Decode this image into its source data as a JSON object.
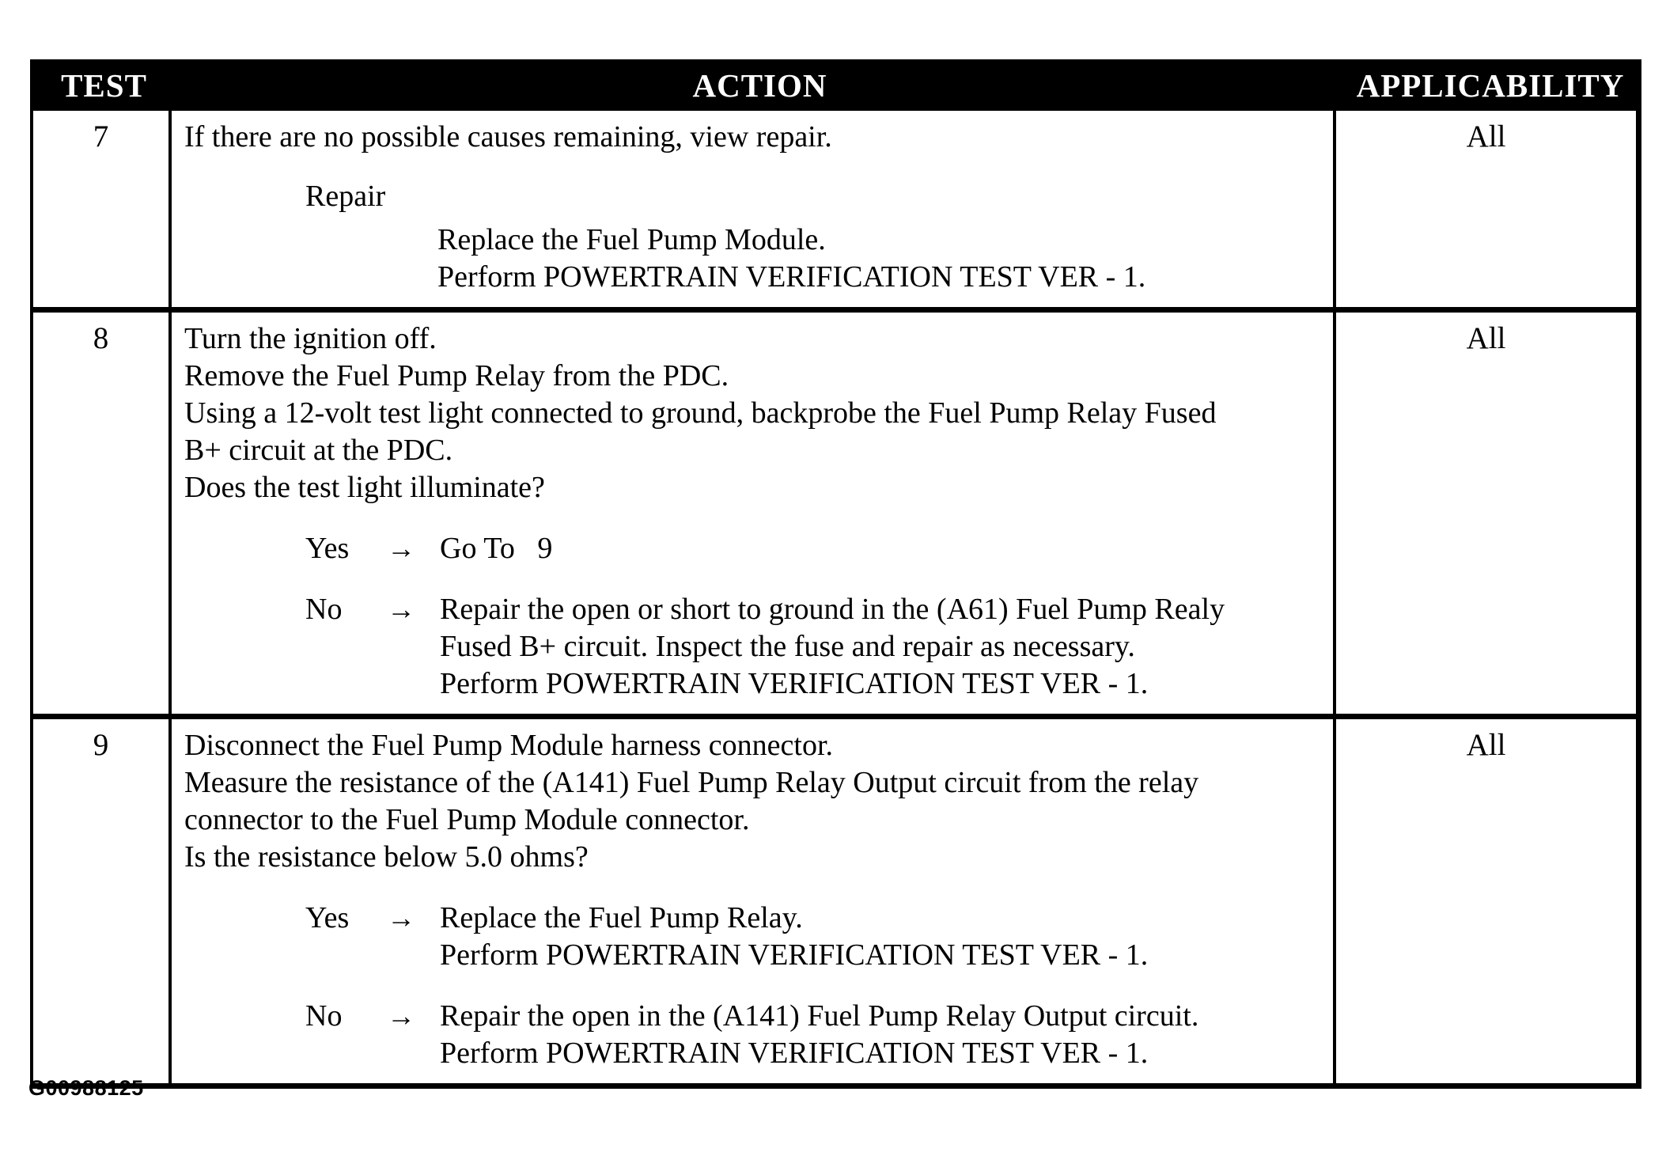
{
  "arrow_glyph": "→",
  "colors": {
    "header_bg": "#000000",
    "header_text": "#ffffff",
    "body_text": "#000000",
    "page_bg": "#ffffff"
  },
  "header": {
    "test": "TEST",
    "action": "ACTION",
    "applicability": "APPLICABILITY"
  },
  "footer": {
    "figure_code": "G00988125"
  },
  "rows": [
    {
      "test": "7",
      "applicability": "All",
      "segments": [
        {
          "type": "para",
          "lines": [
            "If there are no possible causes remaining, view repair."
          ]
        },
        {
          "type": "label",
          "keyword": "Repair",
          "lines": [
            "Replace the Fuel Pump Module.",
            "Perform POWERTRAIN VERIFICATION TEST VER - 1."
          ]
        }
      ]
    },
    {
      "test": "8",
      "applicability": "All",
      "segments": [
        {
          "type": "para",
          "lines": [
            "Turn the ignition off.",
            "Remove the Fuel Pump Relay from the PDC.",
            "Using a 12-volt test light connected to ground, backprobe the Fuel Pump Relay Fused",
            "B+ circuit at the PDC.",
            "Does the test light illuminate?"
          ]
        },
        {
          "type": "decision",
          "keyword": "Yes",
          "lines": [
            "Go To   9"
          ]
        },
        {
          "type": "decision",
          "keyword": "No",
          "lines": [
            "Repair the open or short to ground in the (A61) Fuel Pump Realy",
            "Fused B+ circuit. Inspect the fuse and repair as necessary.",
            "Perform POWERTRAIN VERIFICATION TEST VER - 1."
          ]
        }
      ]
    },
    {
      "test": "9",
      "applicability": "All",
      "segments": [
        {
          "type": "para",
          "lines": [
            "Disconnect the Fuel Pump Module harness connector.",
            "Measure the resistance of the (A141) Fuel Pump Relay Output circuit from the relay",
            "connector to the Fuel Pump Module connector.",
            "Is the resistance below 5.0 ohms?"
          ]
        },
        {
          "type": "decision",
          "keyword": "Yes",
          "lines": [
            "Replace the Fuel Pump Relay.",
            "Perform POWERTRAIN VERIFICATION TEST VER - 1."
          ]
        },
        {
          "type": "decision",
          "keyword": "No",
          "lines": [
            "Repair the open in the (A141) Fuel Pump Relay Output circuit.",
            "Perform POWERTRAIN VERIFICATION TEST VER - 1."
          ]
        }
      ]
    }
  ]
}
